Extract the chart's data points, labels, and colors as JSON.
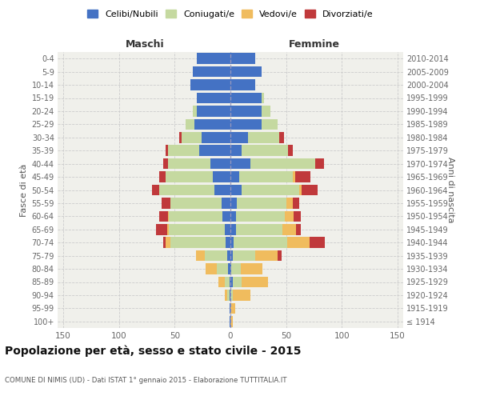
{
  "age_groups": [
    "100+",
    "95-99",
    "90-94",
    "85-89",
    "80-84",
    "75-79",
    "70-74",
    "65-69",
    "60-64",
    "55-59",
    "50-54",
    "45-49",
    "40-44",
    "35-39",
    "30-34",
    "25-29",
    "20-24",
    "15-19",
    "10-14",
    "5-9",
    "0-4"
  ],
  "birth_years": [
    "≤ 1914",
    "1915-1919",
    "1920-1924",
    "1925-1929",
    "1930-1934",
    "1935-1939",
    "1940-1944",
    "1945-1949",
    "1950-1954",
    "1955-1959",
    "1960-1964",
    "1965-1969",
    "1970-1974",
    "1975-1979",
    "1980-1984",
    "1985-1989",
    "1990-1994",
    "1995-1999",
    "2000-2004",
    "2005-2009",
    "2010-2014"
  ],
  "maschi": {
    "celibi": [
      1,
      1,
      1,
      1,
      2,
      3,
      4,
      5,
      7,
      8,
      14,
      16,
      18,
      28,
      26,
      32,
      30,
      30,
      36,
      34,
      30
    ],
    "coniugati": [
      0,
      0,
      2,
      4,
      10,
      20,
      50,
      50,
      48,
      46,
      50,
      42,
      38,
      28,
      18,
      8,
      4,
      0,
      0,
      0,
      0
    ],
    "vedovi": [
      0,
      0,
      2,
      6,
      10,
      8,
      4,
      2,
      1,
      0,
      0,
      0,
      0,
      0,
      0,
      0,
      0,
      0,
      0,
      0,
      0
    ],
    "divorziati": [
      0,
      0,
      0,
      0,
      0,
      0,
      2,
      10,
      8,
      8,
      6,
      6,
      4,
      2,
      2,
      0,
      0,
      0,
      0,
      0,
      0
    ]
  },
  "femmine": {
    "nubili": [
      0,
      0,
      0,
      2,
      1,
      2,
      3,
      5,
      5,
      6,
      10,
      8,
      18,
      10,
      16,
      28,
      28,
      28,
      22,
      28,
      22
    ],
    "coniugate": [
      0,
      0,
      2,
      8,
      8,
      20,
      48,
      42,
      44,
      44,
      52,
      48,
      58,
      42,
      28,
      14,
      8,
      2,
      0,
      0,
      0
    ],
    "vedove": [
      2,
      4,
      16,
      24,
      20,
      20,
      20,
      12,
      8,
      6,
      2,
      2,
      0,
      0,
      0,
      0,
      0,
      0,
      0,
      0,
      0
    ],
    "divorziate": [
      0,
      0,
      0,
      0,
      0,
      4,
      14,
      4,
      6,
      6,
      14,
      14,
      8,
      4,
      4,
      0,
      0,
      0,
      0,
      0,
      0
    ]
  },
  "colors": {
    "celibi": "#4472c4",
    "coniugati": "#c5d9a0",
    "vedovi": "#f0bc5e",
    "divorziati": "#c0393b"
  },
  "legend_labels": [
    "Celibi/Nubili",
    "Coniugati/e",
    "Vedovi/e",
    "Divorziati/e"
  ],
  "xlim": 155,
  "title": "Popolazione per età, sesso e stato civile - 2015",
  "subtitle": "COMUNE DI NIMIS (UD) - Dati ISTAT 1° gennaio 2015 - Elaborazione TUTTITALIA.IT",
  "label_maschi": "Maschi",
  "label_femmine": "Femmine",
  "ylabel_left": "Fasce di età",
  "ylabel_right": "Anni di nascita",
  "bg_color": "#ffffff",
  "plot_bg_color": "#f0f0eb",
  "grid_color": "#cccccc",
  "bar_height": 0.82
}
